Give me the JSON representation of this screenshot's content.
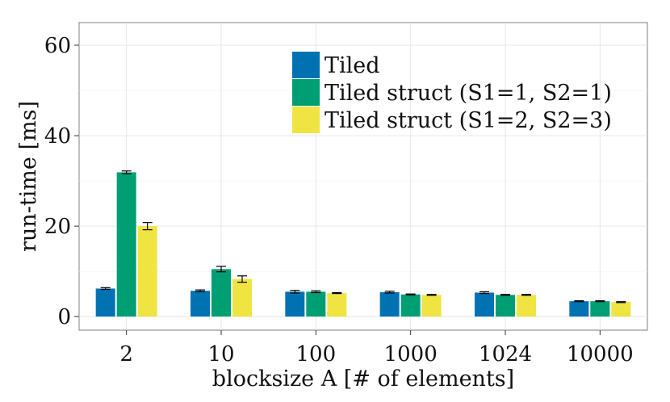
{
  "chart_data": {
    "type": "bar",
    "title": "",
    "xlabel": "blocksize A [# of elements]",
    "ylabel": "run-time [ms]",
    "categories": [
      "2",
      "10",
      "100",
      "1000",
      "1024",
      "10000"
    ],
    "ylim": [
      -3,
      65
    ],
    "yticks": [
      0,
      20,
      40,
      60
    ],
    "grid": true,
    "legend": "top-center",
    "series": [
      {
        "name": "Tiled",
        "color": "#0072B2",
        "values": [
          6.2,
          5.7,
          5.5,
          5.4,
          5.3,
          3.4
        ],
        "errors": [
          0.2,
          0.2,
          0.3,
          0.2,
          0.2,
          0.1
        ]
      },
      {
        "name": "Tiled struct (S1=1, S2=1)",
        "color": "#009E73",
        "values": [
          31.9,
          10.5,
          5.5,
          4.9,
          4.8,
          3.4
        ],
        "errors": [
          0.3,
          0.6,
          0.2,
          0.1,
          0.1,
          0.1
        ]
      },
      {
        "name": "Tiled struct (S1=2, S2=3)",
        "color": "#F0E442",
        "values": [
          20.0,
          8.3,
          5.2,
          4.8,
          4.8,
          3.2
        ],
        "errors": [
          0.8,
          0.7,
          0.1,
          0.1,
          0.1,
          0.1
        ]
      }
    ]
  }
}
